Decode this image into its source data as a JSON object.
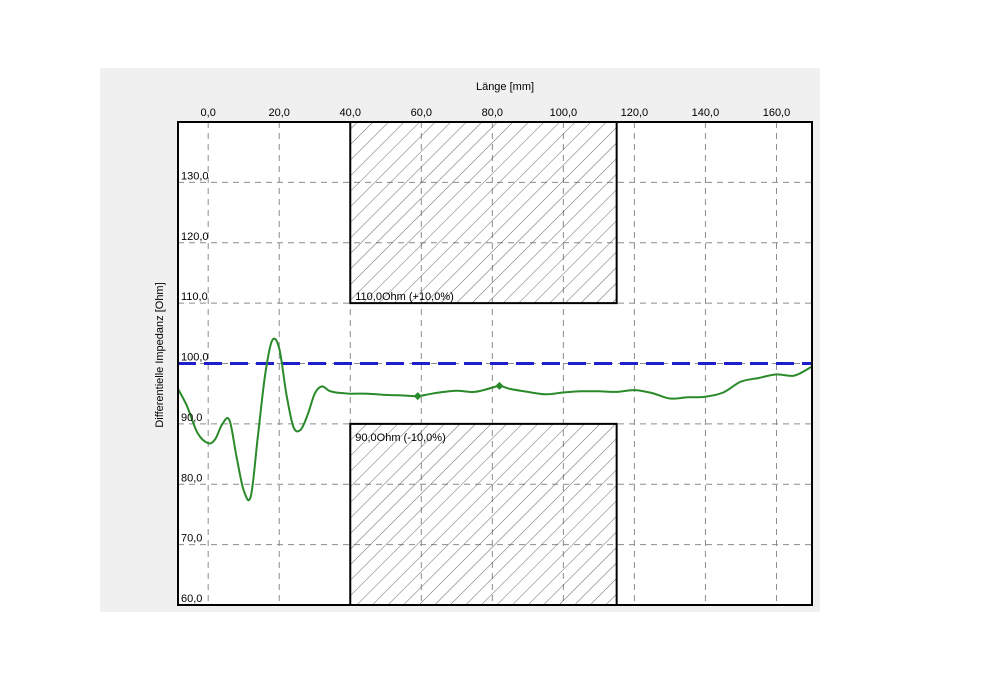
{
  "chart_data": {
    "type": "line",
    "xlabel": "Länge [mm]",
    "ylabel": "Differentielle Impedanz [Ohm]",
    "xlim": [
      -8.5,
      170
    ],
    "ylim": [
      60,
      140
    ],
    "x_ticks": [
      "0,0",
      "20,0",
      "40,0",
      "60,0",
      "80,0",
      "100,0",
      "120,0",
      "140,0",
      "160,0"
    ],
    "x_tick_values": [
      0,
      20,
      40,
      60,
      80,
      100,
      120,
      140,
      160
    ],
    "y_ticks": [
      "60,0",
      "70,0",
      "80,0",
      "90,0",
      "100,0",
      "110,0",
      "120,0",
      "130,0"
    ],
    "y_tick_values": [
      60,
      70,
      80,
      90,
      100,
      110,
      120,
      130
    ],
    "grid": true,
    "reference_line": {
      "y": 100,
      "color": "#1f1fd0",
      "style": "dashed"
    },
    "tolerance_bands": [
      {
        "label": "110,0Ohm (+10,0%)",
        "x_start": 40,
        "x_end": 115,
        "y_from": 110,
        "y_to": 140
      },
      {
        "label": "90,0Ohm (-10,0%)",
        "x_start": 40,
        "x_end": 115,
        "y_from": 60,
        "y_to": 90
      }
    ],
    "series": [
      {
        "color": "#2a8a2a",
        "x": [
          -8.5,
          -6,
          -3,
          0,
          2,
          4,
          6,
          8,
          10,
          12,
          14,
          16,
          18,
          20,
          22,
          24,
          26,
          28,
          30,
          32,
          34,
          36,
          38,
          40,
          45,
          50,
          55,
          59,
          62,
          65,
          70,
          75,
          80,
          82,
          85,
          90,
          95,
          100,
          105,
          110,
          115,
          120,
          125,
          130,
          135,
          140,
          145,
          150,
          155,
          160,
          165,
          170
        ],
        "y": [
          95.8,
          93.0,
          88.5,
          86.8,
          87.5,
          90.0,
          90.6,
          84.5,
          79.0,
          78.0,
          88.0,
          98.0,
          103.8,
          102.5,
          95.0,
          89.5,
          89.0,
          91.5,
          95.0,
          96.2,
          95.5,
          95.2,
          95.1,
          95.0,
          95.0,
          94.8,
          94.7,
          94.6,
          94.9,
          95.2,
          95.5,
          95.3,
          96.0,
          96.3,
          95.8,
          95.3,
          94.9,
          95.2,
          95.4,
          95.4,
          95.3,
          95.6,
          95.1,
          94.2,
          94.4,
          94.5,
          95.2,
          97.0,
          97.6,
          98.2,
          98.0,
          99.5
        ]
      }
    ],
    "markers": [
      {
        "x": 59,
        "y": 94.6
      },
      {
        "x": 82,
        "y": 96.3
      }
    ]
  }
}
